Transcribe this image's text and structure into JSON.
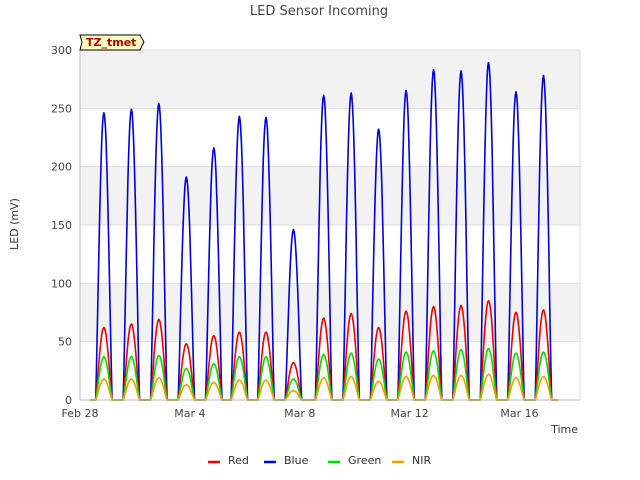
{
  "chart_data": {
    "type": "line",
    "title": "LED Sensor Incoming",
    "xlabel": "Time",
    "ylabel": "LED (mV)",
    "ylim": [
      0,
      300
    ],
    "xlim": [
      0,
      18.2
    ],
    "yticks": [
      0,
      50,
      100,
      150,
      200,
      250,
      300
    ],
    "xticks": [
      {
        "value": 0,
        "label": "Feb 28"
      },
      {
        "value": 4,
        "label": "Mar 4"
      },
      {
        "value": 8,
        "label": "Mar 8"
      },
      {
        "value": 12,
        "label": "Mar 12"
      },
      {
        "value": 16,
        "label": "Mar 16"
      }
    ],
    "site_tag": "TZ_tmet",
    "legend_position": "bottom-center",
    "day_centers": [
      0.87,
      1.87,
      2.87,
      3.87,
      4.87,
      5.8,
      6.77,
      7.77,
      8.87,
      9.87,
      10.87,
      11.87,
      12.87,
      13.87,
      14.87,
      15.87,
      16.87
    ],
    "series": [
      {
        "name": "Red",
        "color": "#ee0000",
        "peaks": [
          62,
          65,
          69,
          48,
          55,
          58,
          58,
          32,
          70,
          74,
          62,
          76,
          80,
          81,
          85,
          75,
          77
        ]
      },
      {
        "name": "Blue",
        "color": "#0000dd",
        "peaks": [
          246,
          249,
          254,
          191,
          216,
          243,
          242,
          146,
          261,
          263,
          232,
          265,
          283,
          282,
          289,
          264,
          278
        ]
      },
      {
        "name": "Green",
        "color": "#00dd00",
        "peaks": [
          37,
          37,
          38,
          27,
          31,
          37,
          37,
          18,
          39,
          40,
          35,
          41,
          42,
          43,
          44,
          40,
          41
        ]
      },
      {
        "name": "NIR",
        "color": "#f0a000",
        "peaks": [
          18,
          18,
          19,
          13,
          15,
          17,
          17,
          8,
          19,
          20,
          16,
          20,
          21,
          21,
          22,
          19,
          20
        ]
      }
    ]
  }
}
